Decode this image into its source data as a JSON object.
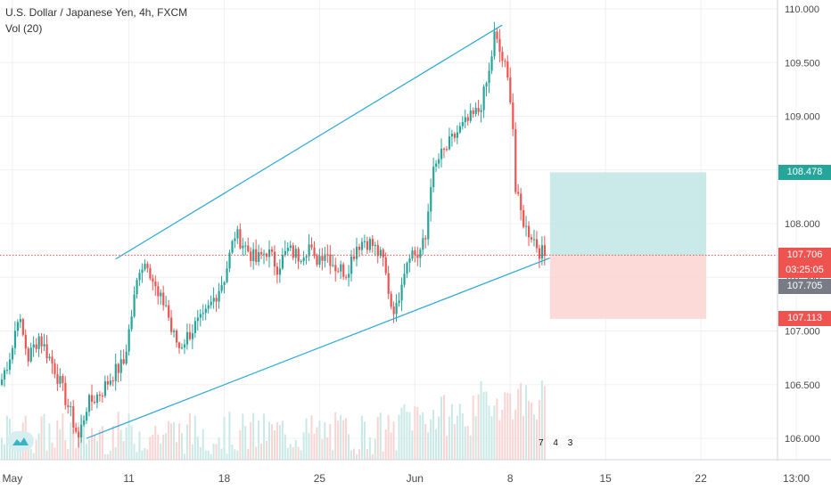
{
  "header": {
    "symbol_line": "U.S. Dollar / Japanese Yen, 4h, FXCM",
    "volume_label": "Vol (20)"
  },
  "price_tags": {
    "target": "108.478",
    "current": "107.706",
    "countdown": "03:25:05",
    "bid": "107.705",
    "stop": "107.113"
  },
  "events": {
    "items": [
      "7",
      "4",
      "3"
    ]
  },
  "colors": {
    "up": "#26a69a",
    "down": "#ef5350",
    "trendline": "#2aa8d8",
    "profit_zone": "#bfe6e4",
    "loss_zone": "#fcd3d1",
    "current_tag": "#ef5350",
    "target_tag": "#26a69a",
    "bid_tag": "#787b86"
  },
  "chart_data": {
    "type": "candlestick",
    "title": "U.S. Dollar / Japanese Yen, 4h, FXCM",
    "timeframe": "4h",
    "ylim": [
      105.8,
      110.05
    ],
    "y_ticks": [
      106.0,
      106.5,
      107.0,
      107.5,
      108.0,
      108.5,
      109.0,
      109.5,
      110.0
    ],
    "x_ticks": [
      "May",
      "11",
      "18",
      "25",
      "Jun",
      "8",
      "15",
      "22",
      "13:00"
    ],
    "x_tick_bars": [
      4,
      48,
      84,
      120,
      156,
      192,
      228,
      264,
      300
    ],
    "grid": true,
    "current_price": 107.706,
    "bid_price": 107.705,
    "target_price": 108.478,
    "stop_price": 107.113,
    "countdown": "03:25:05",
    "path_points": [
      [
        0,
        106.55
      ],
      [
        4,
        106.85
      ],
      [
        6,
        107.15
      ],
      [
        10,
        106.75
      ],
      [
        14,
        106.95
      ],
      [
        20,
        106.65
      ],
      [
        25,
        106.3
      ],
      [
        29,
        106.0
      ],
      [
        32,
        106.3
      ],
      [
        38,
        106.45
      ],
      [
        42,
        106.6
      ],
      [
        46,
        106.7
      ],
      [
        49,
        107.15
      ],
      [
        52,
        107.6
      ],
      [
        55,
        107.65
      ],
      [
        59,
        107.3
      ],
      [
        62,
        107.25
      ],
      [
        64,
        107.0
      ],
      [
        67,
        106.85
      ],
      [
        70,
        106.95
      ],
      [
        73,
        107.05
      ],
      [
        76,
        107.1
      ],
      [
        80,
        107.3
      ],
      [
        84,
        107.5
      ],
      [
        88,
        107.9
      ],
      [
        90,
        107.85
      ],
      [
        93,
        107.75
      ],
      [
        96,
        107.65
      ],
      [
        100,
        107.75
      ],
      [
        104,
        107.6
      ],
      [
        108,
        107.75
      ],
      [
        112,
        107.7
      ],
      [
        116,
        107.8
      ],
      [
        118,
        107.65
      ],
      [
        122,
        107.75
      ],
      [
        126,
        107.6
      ],
      [
        130,
        107.55
      ],
      [
        134,
        107.8
      ],
      [
        137,
        107.85
      ],
      [
        140,
        107.8
      ],
      [
        144,
        107.65
      ],
      [
        147,
        107.25
      ],
      [
        149,
        107.2
      ],
      [
        151,
        107.5
      ],
      [
        154,
        107.75
      ],
      [
        157,
        107.7
      ],
      [
        160,
        107.85
      ],
      [
        162,
        108.4
      ],
      [
        165,
        108.6
      ],
      [
        168,
        108.7
      ],
      [
        172,
        108.85
      ],
      [
        176,
        108.95
      ],
      [
        180,
        109.05
      ],
      [
        182,
        109.2
      ],
      [
        184,
        109.4
      ],
      [
        186,
        109.75
      ],
      [
        188,
        109.6
      ],
      [
        190,
        109.45
      ],
      [
        192,
        109.2
      ],
      [
        193,
        108.9
      ],
      [
        194,
        108.3
      ],
      [
        196,
        108.1
      ],
      [
        198,
        107.95
      ],
      [
        200,
        107.9
      ],
      [
        203,
        107.75
      ],
      [
        205,
        107.7
      ]
    ],
    "trendlines": [
      {
        "name": "upper",
        "from": [
          43,
          107.67
        ],
        "to": [
          189,
          109.85
        ]
      },
      {
        "name": "lower",
        "from": [
          32,
          106.0
        ],
        "to": [
          207,
          107.68
        ]
      }
    ],
    "position": {
      "type": "long",
      "entry": 107.706,
      "target": 108.478,
      "stop": 107.113,
      "from_bar": 207,
      "to_bar": 266
    }
  }
}
